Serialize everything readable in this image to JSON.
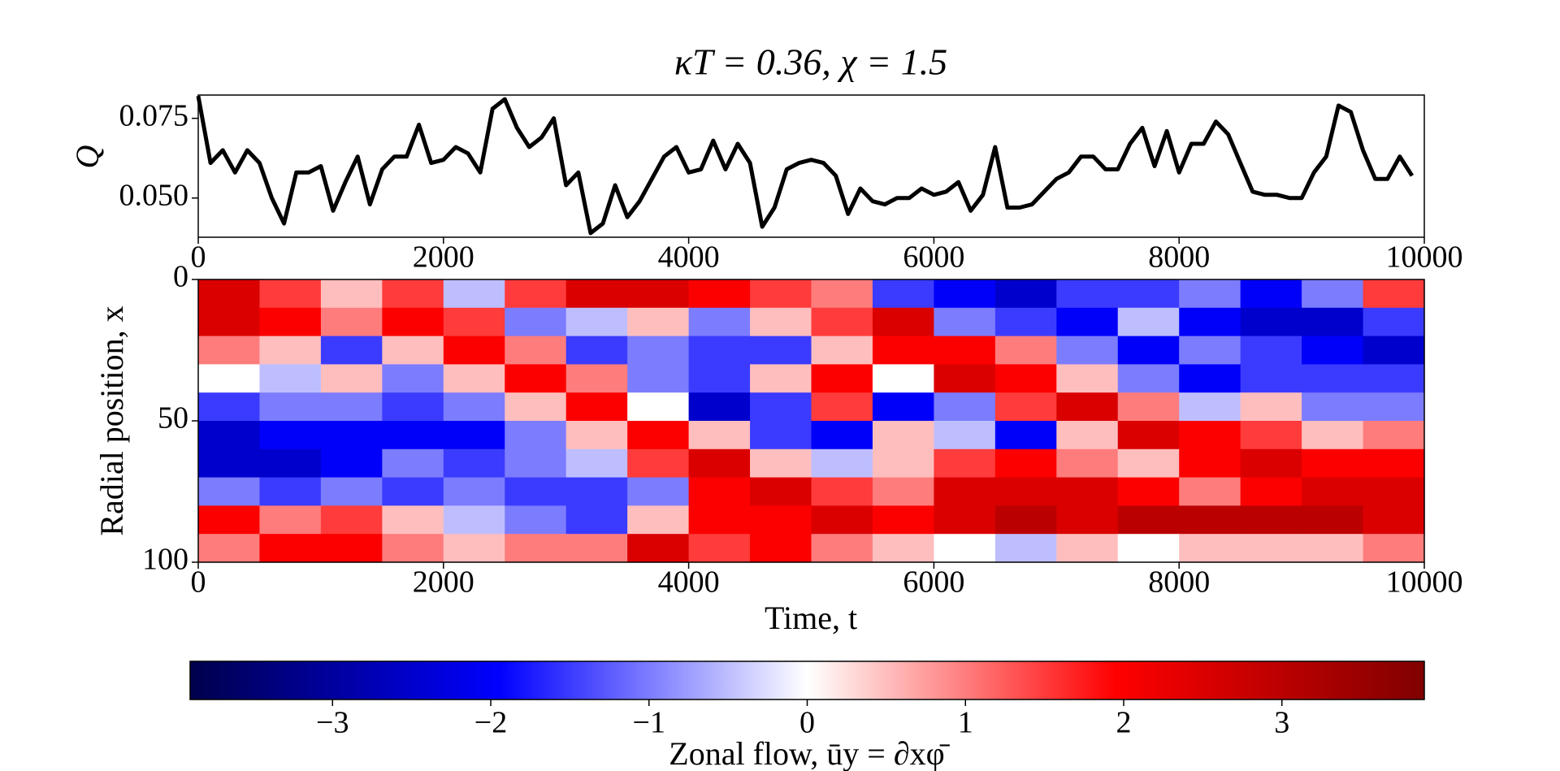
{
  "chart_data": [
    {
      "type": "line",
      "title": "κT = 0.36, χ = 1.5",
      "ylabel": "Q",
      "color": "#000000",
      "x": [
        0,
        100,
        200,
        300,
        400,
        500,
        600,
        700,
        800,
        900,
        1000,
        1100,
        1200,
        1300,
        1400,
        1500,
        1600,
        1700,
        1800,
        1900,
        2000,
        2100,
        2200,
        2300,
        2400,
        2500,
        2600,
        2700,
        2800,
        2900,
        3000,
        3100,
        3200,
        3300,
        3400,
        3500,
        3600,
        3700,
        3800,
        3900,
        4000,
        4100,
        4200,
        4300,
        4400,
        4500,
        4600,
        4700,
        4800,
        4900,
        5000,
        5100,
        5200,
        5300,
        5400,
        5500,
        5600,
        5700,
        5800,
        5900,
        6000,
        6100,
        6200,
        6300,
        6400,
        6500,
        6600,
        6700,
        6800,
        6900,
        7000,
        7100,
        7200,
        7300,
        7400,
        7500,
        7600,
        7700,
        7800,
        7900,
        8000,
        8100,
        8200,
        8300,
        8400,
        8500,
        8600,
        8700,
        8800,
        8900,
        9000,
        9100,
        9200,
        9300,
        9400,
        9500,
        9600,
        9700,
        9800,
        9900
      ],
      "values": [
        0.082,
        0.061,
        0.065,
        0.058,
        0.065,
        0.061,
        0.05,
        0.042,
        0.058,
        0.058,
        0.06,
        0.046,
        0.055,
        0.063,
        0.048,
        0.059,
        0.063,
        0.063,
        0.073,
        0.061,
        0.062,
        0.066,
        0.064,
        0.058,
        0.078,
        0.081,
        0.072,
        0.066,
        0.069,
        0.075,
        0.054,
        0.058,
        0.039,
        0.042,
        0.054,
        0.044,
        0.049,
        0.056,
        0.063,
        0.066,
        0.058,
        0.059,
        0.068,
        0.059,
        0.067,
        0.061,
        0.041,
        0.047,
        0.059,
        0.061,
        0.062,
        0.061,
        0.057,
        0.045,
        0.053,
        0.049,
        0.048,
        0.05,
        0.05,
        0.053,
        0.051,
        0.052,
        0.055,
        0.046,
        0.051,
        0.066,
        0.047,
        0.047,
        0.048,
        0.052,
        0.056,
        0.058,
        0.063,
        0.063,
        0.059,
        0.059,
        0.067,
        0.072,
        0.06,
        0.071,
        0.058,
        0.067,
        0.067,
        0.074,
        0.07,
        0.061,
        0.052,
        0.051,
        0.051,
        0.05,
        0.05,
        0.058,
        0.063,
        0.079,
        0.077,
        0.065,
        0.056,
        0.056,
        0.063,
        0.057
      ],
      "xlim": [
        0,
        10000
      ],
      "ylim": [
        0.0377,
        0.0823
      ],
      "xticks": [
        0,
        2000,
        4000,
        6000,
        8000,
        10000
      ],
      "yticks": [
        {
          "value": 0.05,
          "label": "0.050"
        },
        {
          "value": 0.075,
          "label": "0.075"
        }
      ]
    },
    {
      "type": "heatmap",
      "xlabel": "Time, t",
      "ylabel": "Radial position, x",
      "xlim": [
        0,
        10000
      ],
      "ylim": [
        100,
        0
      ],
      "xticks": [
        0,
        2000,
        4000,
        6000,
        8000,
        10000
      ],
      "yticks": [
        0,
        50,
        100
      ],
      "colormap": "seismic",
      "clim": [
        -3.9,
        3.9
      ],
      "values": [
        [
          2.5,
          1.5,
          0.5,
          1.5,
          -0.5,
          1.5,
          2.5,
          2.5,
          2,
          1.5,
          1,
          -1.5,
          -2,
          -2.5,
          -1.5,
          -1.5,
          -1,
          -2,
          -1,
          1.5
        ],
        [
          2.5,
          2,
          1,
          2,
          1.5,
          -1,
          -0.5,
          0.5,
          -1,
          0.5,
          1.5,
          2.5,
          -1,
          -1.5,
          -2,
          -0.5,
          -2,
          -2.5,
          -2.5,
          -1.5
        ],
        [
          1,
          0.5,
          -1.5,
          0.5,
          2,
          1,
          -1.5,
          -1,
          -1.5,
          -1.5,
          0.5,
          2,
          2,
          1,
          -1,
          -2,
          -1,
          -1.5,
          -2,
          -2.5
        ],
        [
          0,
          -0.5,
          0.5,
          -1,
          0.5,
          2,
          1,
          -1,
          -1.5,
          0.5,
          2,
          0,
          2.5,
          2,
          0.5,
          -1,
          -2,
          -1.5,
          -1.5,
          -1.5
        ],
        [
          -1.5,
          -1,
          -1,
          -1.5,
          -1,
          0.5,
          2,
          0,
          -2.5,
          -1.5,
          1.5,
          -2,
          -1,
          1.5,
          2.5,
          1,
          -0.5,
          0.5,
          -1,
          -1
        ],
        [
          -2.5,
          -2,
          -2,
          -2,
          -2,
          -1,
          0.5,
          2,
          0.5,
          -1.5,
          -2,
          0.5,
          -0.5,
          -2,
          0.5,
          2.5,
          2,
          1.5,
          0.5,
          1
        ],
        [
          -2.5,
          -2.5,
          -2,
          -1,
          -1.5,
          -1,
          -0.5,
          1.5,
          2.5,
          0.5,
          -0.5,
          0.5,
          1.5,
          2,
          1,
          0.5,
          2,
          2.5,
          2,
          2
        ],
        [
          -1,
          -1.5,
          -1,
          -1.5,
          -1,
          -1.5,
          -1.5,
          -1,
          2,
          2.5,
          1.5,
          1,
          2.5,
          2.5,
          2.5,
          2,
          1,
          2,
          2.5,
          2.5
        ],
        [
          2,
          1,
          1.5,
          0.5,
          -0.5,
          -1,
          -1.5,
          0.5,
          2,
          2,
          2.5,
          2,
          2.5,
          3,
          2.5,
          3,
          3,
          3,
          3,
          2.5
        ],
        [
          1,
          2,
          2,
          1,
          0.5,
          1,
          1,
          2.5,
          1.5,
          2,
          1,
          0.5,
          0,
          -0.5,
          0.5,
          0,
          0.5,
          0.5,
          0.5,
          1
        ]
      ],
      "colorbar": {
        "label": "Zonal flow, ūy = ∂xφ̄",
        "ticks": [
          {
            "value": -3,
            "label": "−3"
          },
          {
            "value": -2,
            "label": "−2"
          },
          {
            "value": -1,
            "label": "−1"
          },
          0,
          1,
          2,
          3
        ]
      }
    }
  ]
}
